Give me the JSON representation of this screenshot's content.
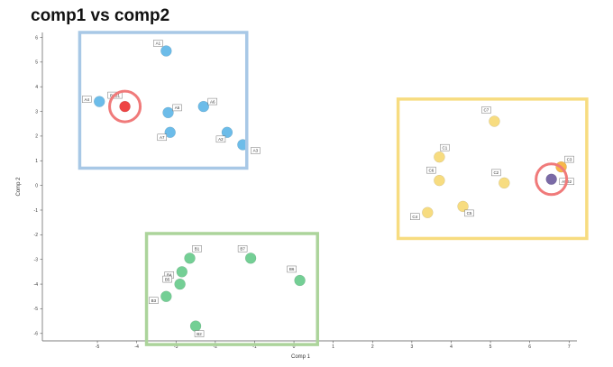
{
  "chart_data": {
    "type": "scatter",
    "title": "comp1 vs comp2",
    "xlabel": "Comp 1",
    "ylabel": "Comp 2",
    "xlim": [
      -6.4,
      7.2
    ],
    "ylim": [
      -6.3,
      6.2
    ],
    "xticks": [
      -5,
      -4,
      -3,
      -2,
      -1,
      0,
      1,
      2,
      3,
      4,
      5,
      6,
      7
    ],
    "yticks": [
      -6,
      -5,
      -4,
      -3,
      -2,
      -1,
      0,
      1,
      2,
      3,
      4,
      5,
      6
    ],
    "points": [
      {
        "label": "A1",
        "x": -3.25,
        "y": 5.45,
        "color": "#6cbce9"
      },
      {
        "label": "A4",
        "x": -4.95,
        "y": 3.4,
        "color": "#6cbce9"
      },
      {
        "label": "A5",
        "x": -3.2,
        "y": 2.95,
        "color": "#6cbce9"
      },
      {
        "label": "A6",
        "x": -2.3,
        "y": 3.2,
        "color": "#6cbce9"
      },
      {
        "label": "A7",
        "x": -3.15,
        "y": 2.15,
        "color": "#6cbce9"
      },
      {
        "label": "A2",
        "x": -1.7,
        "y": 2.15,
        "color": "#6cbce9"
      },
      {
        "label": "A3",
        "x": -1.3,
        "y": 1.65,
        "color": "#6cbce9"
      },
      {
        "label": "B2B1",
        "x": -4.3,
        "y": 3.2,
        "color": "#ee4444"
      },
      {
        "label": "C7",
        "x": 5.1,
        "y": 2.6,
        "color": "#f7dc80"
      },
      {
        "label": "C1",
        "x": 3.7,
        "y": 1.15,
        "color": "#f7dc80"
      },
      {
        "label": "C6",
        "x": 3.7,
        "y": 0.2,
        "color": "#f7dc80"
      },
      {
        "label": "C2",
        "x": 5.35,
        "y": 0.1,
        "color": "#f7dc80"
      },
      {
        "label": "C3",
        "x": 6.8,
        "y": 0.75,
        "color": "#f7b84b"
      },
      {
        "label": "A5B2",
        "x": 6.55,
        "y": 0.25,
        "color": "#7a6aa6"
      },
      {
        "label": "C5",
        "x": 4.3,
        "y": -0.85,
        "color": "#f7dc80"
      },
      {
        "label": "C4",
        "x": 3.4,
        "y": -1.1,
        "color": "#f7dc80"
      },
      {
        "label": "B1",
        "x": -2.65,
        "y": -2.95,
        "color": "#74cf95"
      },
      {
        "label": "B7",
        "x": -1.1,
        "y": -2.95,
        "color": "#74cf95"
      },
      {
        "label": "B4",
        "x": -2.85,
        "y": -3.5,
        "color": "#74cf95"
      },
      {
        "label": "B5",
        "x": -2.9,
        "y": -4.0,
        "color": "#74cf95"
      },
      {
        "label": "B3",
        "x": -3.25,
        "y": -4.5,
        "color": "#74cf95"
      },
      {
        "label": "B6",
        "x": 0.15,
        "y": -3.85,
        "color": "#74cf95"
      },
      {
        "label": "B2",
        "x": -2.5,
        "y": -5.7,
        "color": "#74cf95"
      }
    ],
    "highlights": [
      {
        "x": -4.3,
        "y": 3.2,
        "color": "#f07a7a"
      },
      {
        "x": 6.55,
        "y": 0.25,
        "color": "#f07a7a"
      }
    ],
    "groups": [
      {
        "x0": -5.45,
        "x1": -1.2,
        "y0": 0.7,
        "y1": 6.2,
        "color": "#a8c8e6"
      },
      {
        "x0": 2.65,
        "x1": 7.45,
        "y0": -2.15,
        "y1": 3.5,
        "color": "#f7dc80"
      },
      {
        "x0": -3.75,
        "x1": 0.6,
        "y0": -6.45,
        "y1": -1.95,
        "color": "#acd49b"
      }
    ]
  }
}
